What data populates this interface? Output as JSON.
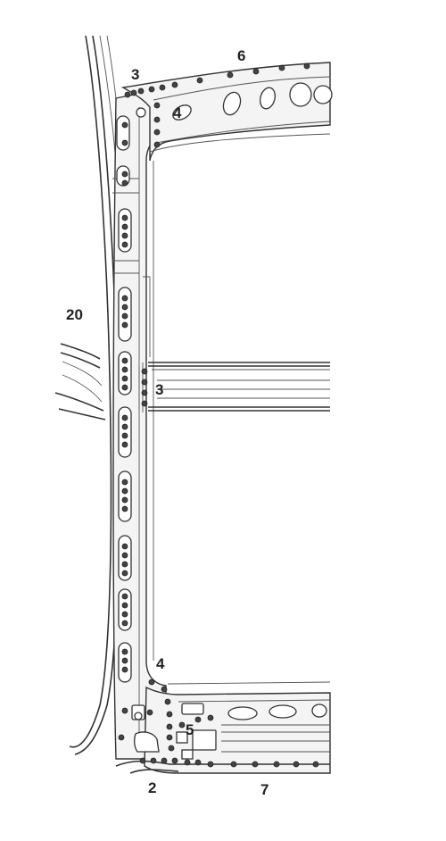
{
  "diagram": {
    "callouts": [
      {
        "id": "c3-top",
        "text": "3"
      },
      {
        "id": "c6",
        "text": "6"
      },
      {
        "id": "c4-top",
        "text": "4"
      },
      {
        "id": "c20",
        "text": "20"
      },
      {
        "id": "c3-mid",
        "text": "3"
      },
      {
        "id": "c4-bottom",
        "text": "4"
      },
      {
        "id": "c5",
        "text": "5"
      },
      {
        "id": "c2",
        "text": "2"
      },
      {
        "id": "c7",
        "text": "7"
      }
    ],
    "colors": {
      "line": "#333333",
      "weld_dot": "#444444",
      "panel": "#f4f4f4"
    }
  }
}
